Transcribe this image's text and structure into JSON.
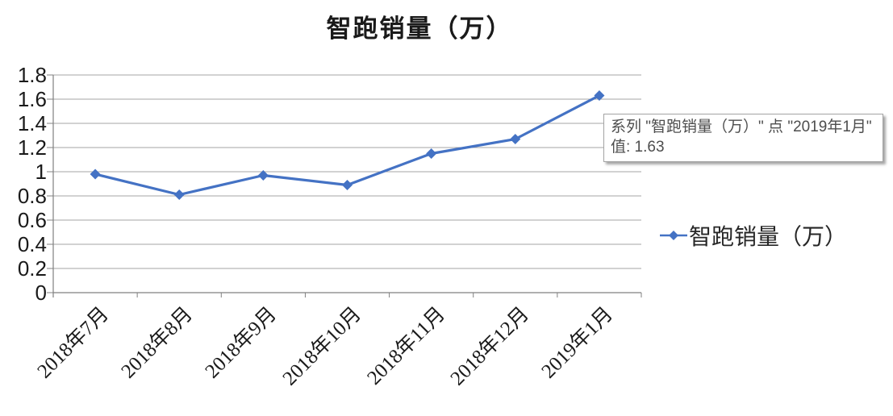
{
  "title": "智跑销量（万）",
  "chart_data": {
    "type": "line",
    "title": "智跑销量（万）",
    "categories": [
      "2018年7月",
      "2018年8月",
      "2018年9月",
      "2018年10月",
      "2018年11月",
      "2018年12月",
      "2019年1月"
    ],
    "series": [
      {
        "name": "智跑销量（万）",
        "values": [
          0.98,
          0.81,
          0.97,
          0.89,
          1.15,
          1.27,
          1.63
        ]
      }
    ],
    "xlabel": "",
    "ylabel": "",
    "ylim": [
      0,
      1.8
    ],
    "y_ticks": [
      "0",
      "0.2",
      "0.4",
      "0.6",
      "0.8",
      "1",
      "1.2",
      "1.4",
      "1.6",
      "1.8"
    ],
    "grid": true,
    "legend_position": "right",
    "line_color": "#4472C4",
    "gridline_color": "#A6A6A6",
    "axis_color": "#808080",
    "marker": "diamond"
  },
  "legend": {
    "label": "智跑销量（万）"
  },
  "tooltip": {
    "line1": "系列 \"智跑销量（万）\" 点 \"2019年1月\"",
    "line2": "值: 1.63"
  }
}
